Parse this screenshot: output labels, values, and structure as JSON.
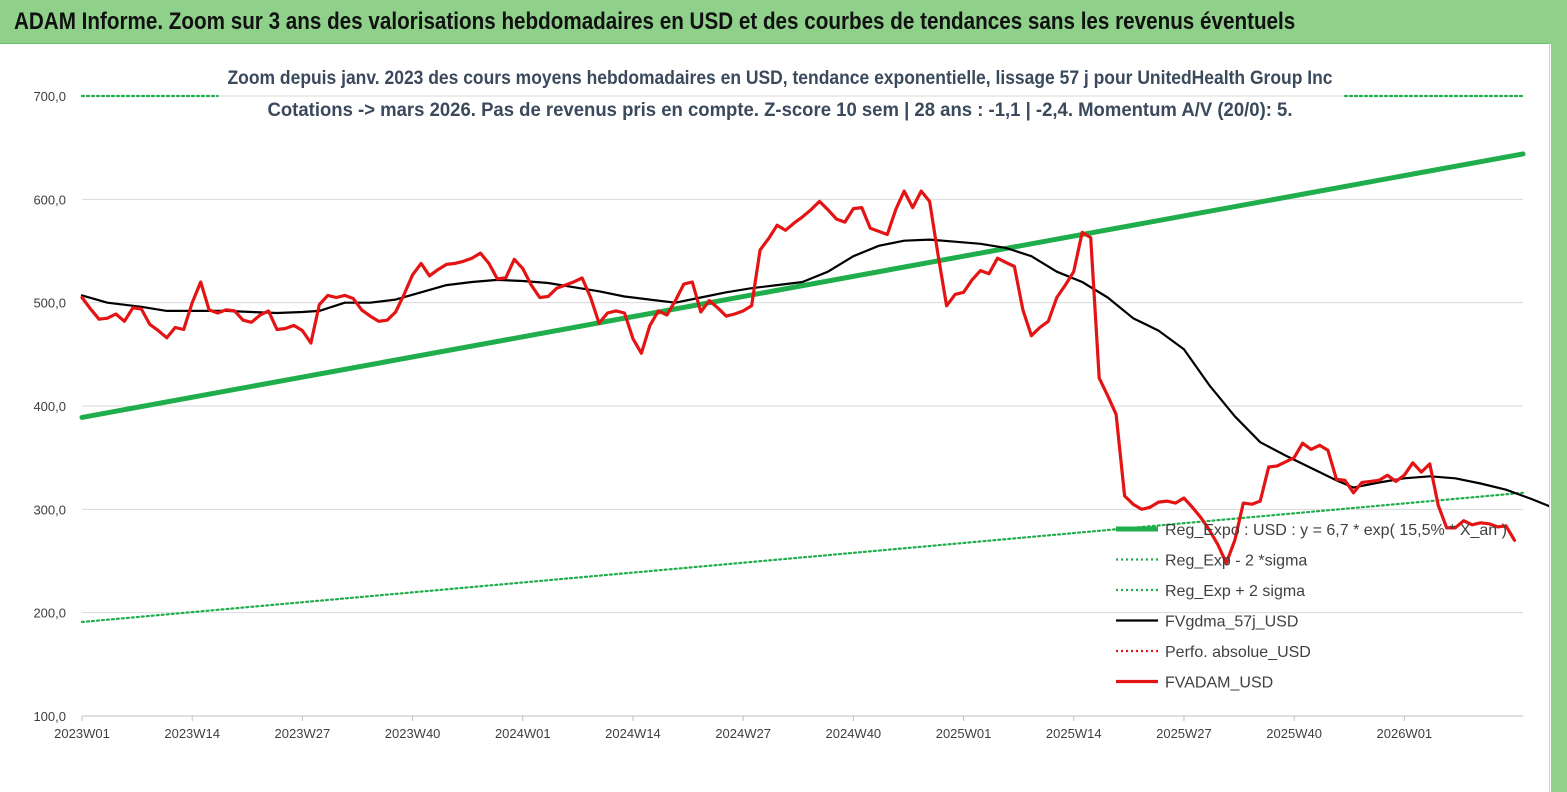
{
  "header": {
    "title": "ADAM Informe. Zoom sur 3 ans des valorisations hebdomadaires en USD et des courbes de tendances sans les revenus éventuels"
  },
  "colors": {
    "banner": "#8fd18a",
    "trend": "#1fae4b",
    "price": "#e41414",
    "smooth": "#000000",
    "perfo": "#e41414"
  },
  "chart_data": {
    "type": "line",
    "title": "Zoom depuis janv. 2023 des cours moyens hebdomadaires en USD, tendance exponentielle, lissage 57 j pour UnitedHealth Group Inc",
    "subtitle": "Cotations -> mars 2026. Pas de revenus pris en compte. Z-score 10 sem | 28 ans : -1,1 | -2,4. Momentum A/V (20/0): 5.",
    "x_categories": [
      "2023W01",
      "2023W14",
      "2023W27",
      "2023W40",
      "2024W01",
      "2024W14",
      "2024W27",
      "2024W40",
      "2025W01",
      "2025W14",
      "2025W27",
      "2025W40",
      "2026W01"
    ],
    "y_ticks": [
      "100,0",
      "200,0",
      "300,0",
      "400,0",
      "500,0",
      "600,0",
      "700,0"
    ],
    "ylim": [
      100,
      700
    ],
    "weeks_total": 170,
    "series": [
      {
        "name": "Reg_Expo : USD : y = 6,7 * exp( 15,5% * X_an )",
        "style": "trend",
        "points": [
          [
            0,
            389
          ],
          [
            170,
            644
          ]
        ]
      },
      {
        "name": "Reg_Exp - 2 *sigma",
        "style": "dotted-green",
        "points": [
          [
            0,
            191
          ],
          [
            170,
            316
          ]
        ]
      },
      {
        "name": "Reg_Exp + 2 sigma",
        "style": "dotted-green",
        "segments": [
          [
            [
              0,
              700
            ],
            [
              16,
              700
            ]
          ],
          [
            [
              149,
              700
            ],
            [
              170,
              700
            ]
          ]
        ]
      },
      {
        "name": "FVgdma_57j_USD",
        "style": "smooth",
        "points": [
          [
            0,
            507
          ],
          [
            3,
            500
          ],
          [
            7,
            496
          ],
          [
            10,
            492
          ],
          [
            13,
            492
          ],
          [
            17,
            492
          ],
          [
            20,
            491
          ],
          [
            23,
            490
          ],
          [
            26,
            491
          ],
          [
            28,
            492
          ],
          [
            31,
            500
          ],
          [
            34,
            500
          ],
          [
            37,
            503
          ],
          [
            40,
            510
          ],
          [
            43,
            517
          ],
          [
            46,
            520
          ],
          [
            49,
            522
          ],
          [
            52,
            521
          ],
          [
            55,
            519
          ],
          [
            58,
            515
          ],
          [
            61,
            511
          ],
          [
            64,
            506
          ],
          [
            67,
            503
          ],
          [
            70,
            500
          ],
          [
            73,
            505
          ],
          [
            76,
            510
          ],
          [
            79,
            514
          ],
          [
            82,
            517
          ],
          [
            85,
            520
          ],
          [
            88,
            530
          ],
          [
            91,
            545
          ],
          [
            94,
            555
          ],
          [
            97,
            560
          ],
          [
            100,
            561
          ],
          [
            103,
            559
          ],
          [
            106,
            557
          ],
          [
            109,
            553
          ],
          [
            112,
            545
          ],
          [
            115,
            530
          ],
          [
            118,
            520
          ],
          [
            121,
            505
          ],
          [
            124,
            485
          ],
          [
            127,
            473
          ],
          [
            130,
            455
          ],
          [
            133,
            420
          ],
          [
            136,
            390
          ],
          [
            139,
            365
          ],
          [
            142,
            352
          ],
          [
            145,
            340
          ],
          [
            148,
            328
          ],
          [
            150,
            321
          ],
          [
            153,
            326
          ],
          [
            156,
            330
          ],
          [
            159,
            332
          ],
          [
            162,
            330
          ],
          [
            165,
            325
          ],
          [
            168,
            319
          ],
          [
            171,
            310
          ],
          [
            174,
            300
          ],
          [
            177,
            293
          ],
          [
            180,
            289
          ],
          [
            183,
            285
          ]
        ]
      },
      {
        "name": "Perfo. absolue_USD",
        "style": "dotted-red",
        "points": []
      },
      {
        "name": "FVADAM_USD",
        "style": "price",
        "points": [
          [
            0,
            505
          ],
          [
            1,
            494
          ],
          [
            2,
            484
          ],
          [
            3,
            485
          ],
          [
            4,
            489
          ],
          [
            5,
            482
          ],
          [
            6,
            495
          ],
          [
            7,
            494
          ],
          [
            8,
            479
          ],
          [
            9,
            473
          ],
          [
            10,
            466
          ],
          [
            11,
            476
          ],
          [
            12,
            474
          ],
          [
            13,
            500
          ],
          [
            14,
            520
          ],
          [
            15,
            493
          ],
          [
            16,
            490
          ],
          [
            17,
            493
          ],
          [
            18,
            492
          ],
          [
            19,
            483
          ],
          [
            20,
            481
          ],
          [
            21,
            488
          ],
          [
            22,
            492
          ],
          [
            23,
            474
          ],
          [
            24,
            475
          ],
          [
            25,
            478
          ],
          [
            26,
            473
          ],
          [
            27,
            461
          ],
          [
            28,
            498
          ],
          [
            29,
            507
          ],
          [
            30,
            505
          ],
          [
            31,
            507
          ],
          [
            32,
            504
          ],
          [
            33,
            493
          ],
          [
            34,
            487
          ],
          [
            35,
            482
          ],
          [
            36,
            483
          ],
          [
            37,
            491
          ],
          [
            38,
            508
          ],
          [
            39,
            527
          ],
          [
            40,
            538
          ],
          [
            41,
            526
          ],
          [
            42,
            532
          ],
          [
            43,
            537
          ],
          [
            44,
            538
          ],
          [
            45,
            540
          ],
          [
            46,
            543
          ],
          [
            47,
            548
          ],
          [
            48,
            538
          ],
          [
            49,
            523
          ],
          [
            50,
            524
          ],
          [
            51,
            542
          ],
          [
            52,
            533
          ],
          [
            53,
            517
          ],
          [
            54,
            505
          ],
          [
            55,
            506
          ],
          [
            56,
            514
          ],
          [
            57,
            517
          ],
          [
            58,
            520
          ],
          [
            59,
            524
          ],
          [
            60,
            505
          ],
          [
            61,
            480
          ],
          [
            62,
            490
          ],
          [
            63,
            492
          ],
          [
            64,
            490
          ],
          [
            65,
            465
          ],
          [
            66,
            451
          ],
          [
            67,
            478
          ],
          [
            68,
            492
          ],
          [
            69,
            488
          ],
          [
            70,
            502
          ],
          [
            71,
            518
          ],
          [
            72,
            520
          ],
          [
            73,
            491
          ],
          [
            74,
            502
          ],
          [
            75,
            495
          ],
          [
            76,
            487
          ],
          [
            77,
            489
          ],
          [
            78,
            492
          ],
          [
            79,
            497
          ],
          [
            80,
            551
          ],
          [
            81,
            562
          ],
          [
            82,
            575
          ],
          [
            83,
            570
          ],
          [
            84,
            577
          ],
          [
            85,
            583
          ],
          [
            86,
            590
          ],
          [
            87,
            598
          ],
          [
            88,
            590
          ],
          [
            89,
            581
          ],
          [
            90,
            578
          ],
          [
            91,
            591
          ],
          [
            92,
            592
          ],
          [
            93,
            572
          ],
          [
            94,
            569
          ],
          [
            95,
            566
          ],
          [
            96,
            590
          ],
          [
            97,
            608
          ],
          [
            98,
            592
          ],
          [
            99,
            608
          ],
          [
            100,
            598
          ],
          [
            101,
            546
          ],
          [
            102,
            497
          ],
          [
            103,
            508
          ],
          [
            104,
            510
          ],
          [
            105,
            522
          ],
          [
            106,
            531
          ],
          [
            107,
            528
          ],
          [
            108,
            543
          ],
          [
            109,
            539
          ],
          [
            110,
            535
          ],
          [
            111,
            493
          ],
          [
            112,
            468
          ],
          [
            113,
            476
          ],
          [
            114,
            482
          ],
          [
            115,
            505
          ],
          [
            116,
            517
          ],
          [
            117,
            530
          ],
          [
            118,
            568
          ],
          [
            119,
            563
          ],
          [
            120,
            427
          ],
          [
            121,
            410
          ],
          [
            122,
            392
          ],
          [
            123,
            313
          ],
          [
            124,
            305
          ],
          [
            125,
            300
          ],
          [
            126,
            302
          ],
          [
            127,
            307
          ],
          [
            128,
            308
          ],
          [
            129,
            306
          ],
          [
            130,
            311
          ],
          [
            131,
            302
          ],
          [
            132,
            292
          ],
          [
            133,
            280
          ],
          [
            134,
            266
          ],
          [
            135,
            248
          ],
          [
            136,
            270
          ],
          [
            137,
            306
          ],
          [
            138,
            305
          ],
          [
            139,
            308
          ],
          [
            140,
            341
          ],
          [
            141,
            342
          ],
          [
            142,
            346
          ],
          [
            143,
            350
          ],
          [
            144,
            364
          ],
          [
            145,
            358
          ],
          [
            146,
            362
          ],
          [
            147,
            357
          ],
          [
            148,
            329
          ],
          [
            149,
            328
          ],
          [
            150,
            316
          ],
          [
            151,
            326
          ],
          [
            152,
            327
          ],
          [
            153,
            328
          ],
          [
            154,
            333
          ],
          [
            155,
            327
          ],
          [
            156,
            333
          ],
          [
            157,
            345
          ],
          [
            158,
            336
          ],
          [
            159,
            344
          ],
          [
            160,
            304
          ],
          [
            161,
            282
          ],
          [
            162,
            282
          ],
          [
            163,
            289
          ],
          [
            164,
            285
          ],
          [
            165,
            287
          ],
          [
            166,
            286
          ],
          [
            167,
            283
          ],
          [
            168,
            284
          ],
          [
            169,
            270
          ]
        ]
      }
    ]
  }
}
